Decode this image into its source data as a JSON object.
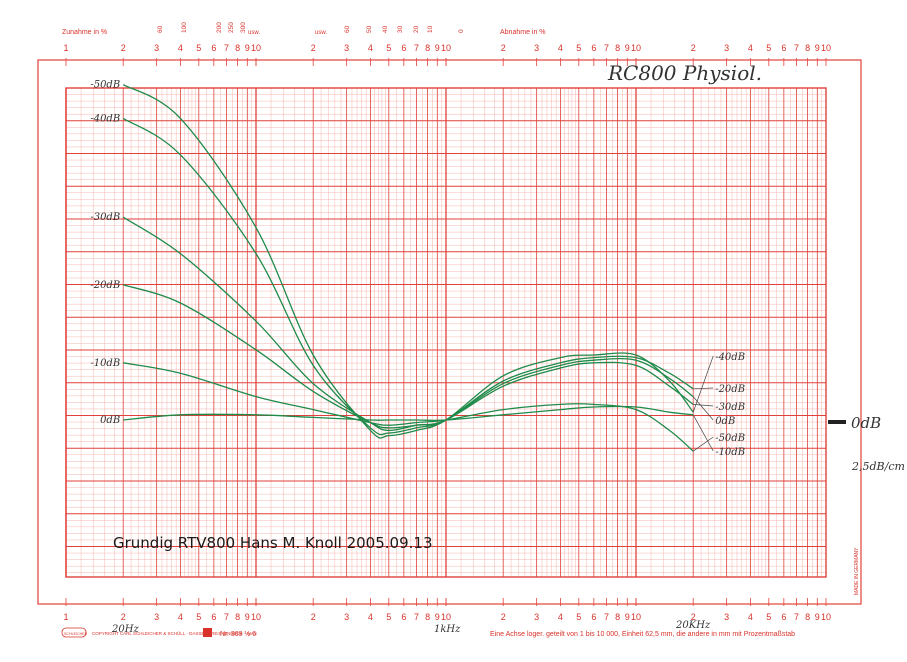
{
  "colors": {
    "paper": "#ffffff",
    "grid_major": "#e0413a",
    "grid_minor": "#f1a39c",
    "curve": "#1f8a4a",
    "annotation": "#333333"
  },
  "header": {
    "zunahme_label": "Zunahme in %",
    "zunahme_ticks": [
      "60",
      "100",
      "200",
      "250",
      "300"
    ],
    "abnahme_label": "Abnahme in %",
    "usw_left": "usw.",
    "usw_right": "usw.",
    "abnahme_ticks": [
      "60",
      "50",
      "40",
      "30",
      "20",
      "10",
      "0"
    ]
  },
  "decades_top": [
    "1",
    "2",
    "3",
    "4",
    "5",
    "6",
    "7",
    "8",
    "9",
    "10",
    "2",
    "3",
    "4",
    "5",
    "6",
    "7",
    "8",
    "9",
    "10",
    "2",
    "3",
    "4",
    "5",
    "6",
    "7",
    "8",
    "9",
    "10",
    "2",
    "3",
    "4",
    "5",
    "6",
    "7",
    "8",
    "9",
    "10"
  ],
  "decades_bottom": [
    "1",
    "2",
    "3",
    "4",
    "5",
    "6",
    "7",
    "8",
    "9",
    "10",
    "2",
    "3",
    "4",
    "5",
    "6",
    "7",
    "8",
    "9",
    "10",
    "2",
    "3",
    "4",
    "5",
    "6",
    "7",
    "8",
    "9",
    "10",
    "2",
    "3",
    "4",
    "5",
    "6",
    "7",
    "8",
    "9",
    "10"
  ],
  "annotations": {
    "top_right": "RC800 Physiol.",
    "stamp": "Grundig RTV800  Hans M. Knoll 2005.09.13",
    "right_zero": "0dB",
    "scale_note": "2,5dB/cm",
    "freq_low": "20Hz",
    "freq_mid": "1kHz",
    "freq_high": "20KHz"
  },
  "footer": {
    "maker_badge": "SCHLEICHER",
    "copyright": "COPYRIGHT CARL SCHLEICHER & SCHÜLL · DASSEL/KREIS EINBECK · SIAS",
    "number": "Nr. 369 ½ 6",
    "note": "Eine Achse loger. geteilt von 1 bis 10 000, Einheit 62,5 mm, die andere in mm mit Prozentmaßstab",
    "side": "MADE IN GERMANY"
  },
  "chart_data": {
    "type": "line",
    "title": "",
    "xlabel": "",
    "ylabel": "",
    "x_scale": "log",
    "xlim": [
      20,
      20000
    ],
    "y_unit": "dB relative to 0dB line",
    "y_scale_note": "2,5dB/cm",
    "x": [
      20,
      40,
      100,
      200,
      400,
      500,
      700,
      1000,
      2000,
      4000,
      6000,
      10000,
      15000,
      20000
    ],
    "series": [
      {
        "name": "-50dB",
        "values": [
          12.9,
          11.6,
          7.4,
          2.5,
          -0.4,
          -0.6,
          -0.4,
          0.0,
          1.7,
          2.4,
          2.5,
          2.5,
          1.5,
          0.3
        ]
      },
      {
        "name": "-40dB",
        "values": [
          11.6,
          10.2,
          6.4,
          2.1,
          -0.3,
          -0.5,
          -0.3,
          0.0,
          1.5,
          2.2,
          2.4,
          2.4,
          1.8,
          1.2
        ]
      },
      {
        "name": "-30dB",
        "values": [
          7.8,
          6.4,
          3.8,
          1.4,
          -0.1,
          -0.4,
          -0.2,
          0.0,
          1.3,
          2.0,
          2.2,
          2.1,
          1.3,
          0.6
        ]
      },
      {
        "name": "-20dB",
        "values": [
          5.2,
          4.5,
          2.7,
          1.1,
          -0.1,
          -0.3,
          -0.2,
          0.0,
          1.4,
          2.1,
          2.3,
          2.3,
          1.6,
          0.9
        ]
      },
      {
        "name": "-10dB",
        "values": [
          2.2,
          1.8,
          0.9,
          0.4,
          -0.1,
          -0.2,
          -0.1,
          0.0,
          0.4,
          0.6,
          0.6,
          0.4,
          -0.4,
          -1.2
        ]
      },
      {
        "name": "0dB",
        "values": [
          0.0,
          0.2,
          0.2,
          0.1,
          0.0,
          0.0,
          0.0,
          0.0,
          0.2,
          0.4,
          0.5,
          0.5,
          0.3,
          0.2
        ]
      }
    ],
    "end_labels": [
      "-40dB",
      "-20dB",
      "-30dB",
      "0dB",
      "-50dB",
      "-10dB"
    ],
    "grid": true
  }
}
